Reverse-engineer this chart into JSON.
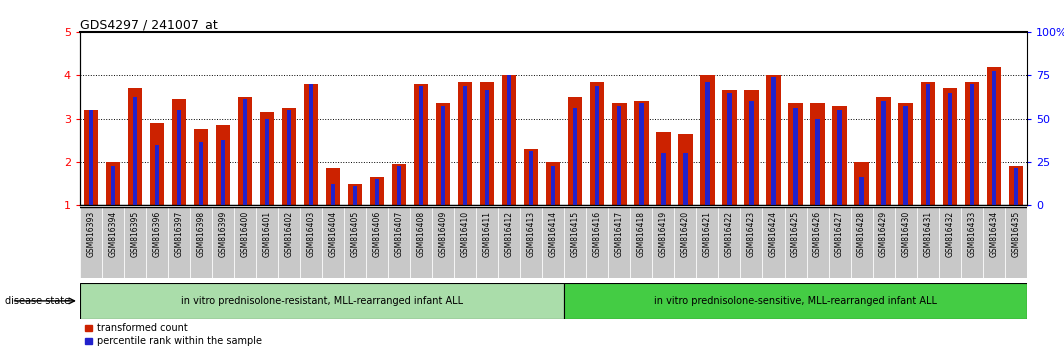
{
  "title": "GDS4297 / 241007_at",
  "samples": [
    "GSM816393",
    "GSM816394",
    "GSM816395",
    "GSM816396",
    "GSM816397",
    "GSM816398",
    "GSM816399",
    "GSM816400",
    "GSM816401",
    "GSM816402",
    "GSM816403",
    "GSM816404",
    "GSM816405",
    "GSM816406",
    "GSM816407",
    "GSM816408",
    "GSM816409",
    "GSM816410",
    "GSM816411",
    "GSM816412",
    "GSM816413",
    "GSM816414",
    "GSM816415",
    "GSM816416",
    "GSM816417",
    "GSM816418",
    "GSM816419",
    "GSM816420",
    "GSM816421",
    "GSM816422",
    "GSM816423",
    "GSM816424",
    "GSM816425",
    "GSM816426",
    "GSM816427",
    "GSM816428",
    "GSM816429",
    "GSM816430",
    "GSM816431",
    "GSM816432",
    "GSM816433",
    "GSM816434",
    "GSM816435"
  ],
  "transformed_count": [
    3.2,
    2.0,
    3.7,
    2.9,
    3.45,
    2.75,
    2.85,
    3.5,
    3.15,
    3.25,
    3.8,
    1.85,
    1.5,
    1.65,
    1.95,
    3.8,
    3.35,
    3.85,
    3.85,
    4.0,
    2.3,
    2.0,
    3.5,
    3.85,
    3.35,
    3.4,
    2.7,
    2.65,
    4.0,
    3.65,
    3.65,
    4.0,
    3.35,
    3.35,
    3.3,
    2.0,
    3.5,
    3.35,
    3.85,
    3.7,
    3.85,
    4.2,
    1.9
  ],
  "percentile_rank": [
    3.2,
    1.9,
    3.5,
    2.4,
    3.2,
    2.45,
    2.5,
    3.45,
    3.0,
    3.2,
    3.8,
    1.5,
    1.45,
    1.6,
    1.9,
    3.75,
    3.3,
    3.75,
    3.65,
    4.0,
    2.25,
    1.9,
    3.25,
    3.75,
    3.3,
    3.35,
    2.2,
    2.2,
    3.85,
    3.6,
    3.4,
    3.95,
    3.25,
    3.0,
    3.2,
    1.65,
    3.4,
    3.3,
    3.8,
    3.6,
    3.8,
    4.1,
    1.85
  ],
  "group1_count": 22,
  "group2_count": 21,
  "group1_label": "in vitro prednisolone-resistant, MLL-rearranged infant ALL",
  "group2_label": "in vitro prednisolone-sensitive, MLL-rearranged infant ALL",
  "disease_state_label": "disease state",
  "group1_color": "#aaddaa",
  "group2_color": "#44cc44",
  "bar_color_red": "#cc2200",
  "bar_color_blue": "#2222cc",
  "ylim_left": [
    1,
    5
  ],
  "ylim_right": [
    0,
    100
  ],
  "yticks_left": [
    1,
    2,
    3,
    4,
    5
  ],
  "yticks_right": [
    0,
    25,
    50,
    75,
    100
  ],
  "ytick_labels_right": [
    "0",
    "25",
    "50",
    "75",
    "100%"
  ],
  "legend_red": "transformed count",
  "legend_blue": "percentile rank within the sample",
  "background_color": "#ffffff",
  "xtick_bg_color": "#c8c8c8",
  "title_fontsize": 9,
  "tick_fontsize": 5.5
}
